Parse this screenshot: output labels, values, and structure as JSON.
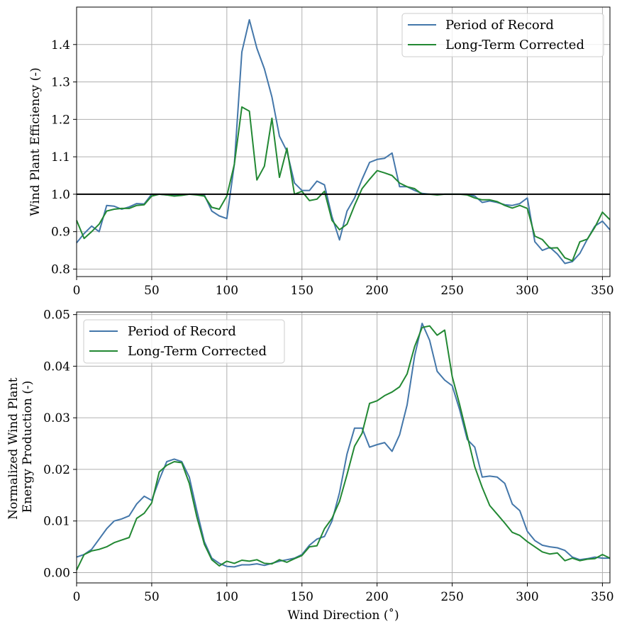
{
  "colors": {
    "period": "#4477aa",
    "longterm": "#228833",
    "reference": "#000000"
  },
  "chart_data": [
    {
      "type": "line",
      "xlabel": "",
      "ylabel": "Wind Plant Efficiency (-)",
      "xlim": [
        0,
        355
      ],
      "ylim": [
        0.78,
        1.5
      ],
      "xticks": [
        0,
        50,
        100,
        150,
        200,
        250,
        300,
        350
      ],
      "xtick_labels": [
        "0",
        "50",
        "100",
        "150",
        "200",
        "250",
        "300",
        "350"
      ],
      "yticks": [
        0.8,
        0.9,
        1.0,
        1.1,
        1.2,
        1.3,
        1.4
      ],
      "ytick_labels": [
        "0.8",
        "0.9",
        "1.0",
        "1.1",
        "1.2",
        "1.3",
        "1.4"
      ],
      "grid": true,
      "legend_position": "top-right",
      "reference_line": 1.0,
      "x": [
        0,
        5,
        10,
        15,
        20,
        25,
        30,
        35,
        40,
        45,
        50,
        55,
        60,
        65,
        70,
        75,
        80,
        85,
        90,
        95,
        100,
        105,
        110,
        115,
        120,
        125,
        130,
        135,
        140,
        145,
        150,
        155,
        160,
        165,
        170,
        175,
        180,
        185,
        190,
        195,
        200,
        205,
        210,
        215,
        220,
        225,
        230,
        235,
        240,
        245,
        250,
        255,
        260,
        265,
        270,
        275,
        280,
        285,
        290,
        295,
        300,
        305,
        310,
        315,
        320,
        325,
        330,
        335,
        340,
        345,
        350,
        355
      ],
      "series": [
        {
          "name": "Period of Record",
          "color_key": "period",
          "values": [
            0.87,
            0.895,
            0.915,
            0.9,
            0.97,
            0.968,
            0.96,
            0.966,
            0.975,
            0.974,
            1.0,
            1.0,
            0.998,
            0.997,
            0.998,
            1.0,
            1.0,
            0.998,
            0.955,
            0.942,
            0.935,
            1.08,
            1.38,
            1.466,
            1.39,
            1.335,
            1.26,
            1.155,
            1.115,
            1.03,
            1.01,
            1.01,
            1.035,
            1.025,
            0.94,
            0.878,
            0.955,
            0.99,
            1.04,
            1.085,
            1.093,
            1.096,
            1.11,
            1.02,
            1.02,
            1.01,
            1.002,
            1.0,
            1.0,
            1.0,
            1.0,
            1.0,
            1.0,
            0.995,
            0.978,
            0.982,
            0.978,
            0.972,
            0.97,
            0.975,
            0.99,
            0.873,
            0.85,
            0.858,
            0.84,
            0.815,
            0.82,
            0.842,
            0.88,
            0.915,
            0.928,
            0.905
          ]
        },
        {
          "name": "Long-Term Corrected",
          "color_key": "longterm",
          "values": [
            0.93,
            0.882,
            0.9,
            0.92,
            0.955,
            0.96,
            0.962,
            0.962,
            0.97,
            0.972,
            0.995,
            1.0,
            0.998,
            0.995,
            0.997,
            1.0,
            0.998,
            0.995,
            0.965,
            0.96,
            0.995,
            1.08,
            1.233,
            1.222,
            1.038,
            1.075,
            1.203,
            1.045,
            1.123,
            1.0,
            1.008,
            0.983,
            0.987,
            1.008,
            0.93,
            0.905,
            0.92,
            0.97,
            1.015,
            1.04,
            1.063,
            1.057,
            1.05,
            1.03,
            1.02,
            1.015,
            1.0,
            1.0,
            0.998,
            1.0,
            1.0,
            1.0,
            0.998,
            0.99,
            0.985,
            0.985,
            0.98,
            0.97,
            0.963,
            0.97,
            0.962,
            0.888,
            0.879,
            0.856,
            0.857,
            0.83,
            0.822,
            0.873,
            0.88,
            0.912,
            0.952,
            0.932
          ]
        }
      ]
    },
    {
      "type": "line",
      "xlabel": "Wind Direction ($^\\circ$)",
      "ylabel": "Normalized Wind Plant|Energy Production (-)",
      "xlim": [
        0,
        355
      ],
      "ylim": [
        -0.002,
        0.0505
      ],
      "xticks": [
        0,
        50,
        100,
        150,
        200,
        250,
        300,
        350
      ],
      "xtick_labels": [
        "0",
        "50",
        "100",
        "150",
        "200",
        "250",
        "300",
        "350"
      ],
      "yticks": [
        0.0,
        0.01,
        0.02,
        0.03,
        0.04,
        0.05
      ],
      "ytick_labels": [
        "0.00",
        "0.01",
        "0.02",
        "0.03",
        "0.04",
        "0.05"
      ],
      "grid": true,
      "legend_position": "top-left",
      "x": [
        0,
        5,
        10,
        15,
        20,
        25,
        30,
        35,
        40,
        45,
        50,
        55,
        60,
        65,
        70,
        75,
        80,
        85,
        90,
        95,
        100,
        105,
        110,
        115,
        120,
        125,
        130,
        135,
        140,
        145,
        150,
        155,
        160,
        165,
        170,
        175,
        180,
        185,
        190,
        195,
        200,
        205,
        210,
        215,
        220,
        225,
        230,
        235,
        240,
        245,
        250,
        255,
        260,
        265,
        270,
        275,
        280,
        285,
        290,
        295,
        300,
        305,
        310,
        315,
        320,
        325,
        330,
        335,
        340,
        345,
        350,
        355
      ],
      "series": [
        {
          "name": "Period of Record",
          "color_key": "period",
          "values": [
            0.003,
            0.0035,
            0.0045,
            0.0065,
            0.0085,
            0.01,
            0.0104,
            0.011,
            0.0133,
            0.0148,
            0.014,
            0.018,
            0.0215,
            0.022,
            0.0215,
            0.0185,
            0.012,
            0.006,
            0.0028,
            0.0018,
            0.0012,
            0.0011,
            0.0015,
            0.0015,
            0.0017,
            0.0014,
            0.0018,
            0.0022,
            0.0025,
            0.0028,
            0.0035,
            0.0053,
            0.0065,
            0.007,
            0.01,
            0.0155,
            0.023,
            0.028,
            0.028,
            0.0243,
            0.0248,
            0.0252,
            0.0235,
            0.0267,
            0.0325,
            0.042,
            0.0483,
            0.045,
            0.039,
            0.0373,
            0.0362,
            0.0315,
            0.0258,
            0.0243,
            0.0185,
            0.0187,
            0.0185,
            0.0173,
            0.0133,
            0.012,
            0.008,
            0.0062,
            0.0053,
            0.005,
            0.0048,
            0.0043,
            0.003,
            0.0025,
            0.0027,
            0.003,
            0.0028,
            0.0028
          ]
        },
        {
          "name": "Long-Term Corrected",
          "color_key": "longterm",
          "values": [
            0.0005,
            0.0035,
            0.0042,
            0.0045,
            0.005,
            0.0058,
            0.0063,
            0.0068,
            0.0105,
            0.0115,
            0.0135,
            0.0195,
            0.0208,
            0.0215,
            0.0213,
            0.0173,
            0.0108,
            0.0055,
            0.0025,
            0.0013,
            0.0022,
            0.0018,
            0.0024,
            0.0022,
            0.0025,
            0.0018,
            0.0017,
            0.0025,
            0.002,
            0.0027,
            0.0033,
            0.005,
            0.0052,
            0.0085,
            0.0105,
            0.0138,
            0.019,
            0.0245,
            0.027,
            0.0328,
            0.0333,
            0.0343,
            0.035,
            0.036,
            0.0385,
            0.0438,
            0.0475,
            0.0478,
            0.046,
            0.047,
            0.038,
            0.0325,
            0.0265,
            0.0205,
            0.0165,
            0.013,
            0.0113,
            0.0096,
            0.0078,
            0.0072,
            0.006,
            0.005,
            0.004,
            0.0036,
            0.0038,
            0.0023,
            0.0028,
            0.0023,
            0.0026,
            0.0027,
            0.0035,
            0.0028
          ]
        }
      ]
    }
  ]
}
